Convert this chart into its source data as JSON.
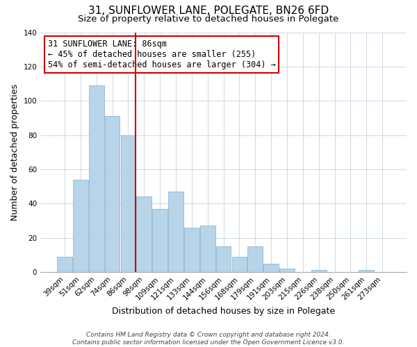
{
  "title": "31, SUNFLOWER LANE, POLEGATE, BN26 6FD",
  "subtitle": "Size of property relative to detached houses in Polegate",
  "xlabel": "Distribution of detached houses by size in Polegate",
  "ylabel": "Number of detached properties",
  "categories": [
    "39sqm",
    "51sqm",
    "62sqm",
    "74sqm",
    "86sqm",
    "98sqm",
    "109sqm",
    "121sqm",
    "133sqm",
    "144sqm",
    "156sqm",
    "168sqm",
    "179sqm",
    "191sqm",
    "203sqm",
    "215sqm",
    "226sqm",
    "238sqm",
    "250sqm",
    "261sqm",
    "273sqm"
  ],
  "values": [
    9,
    54,
    109,
    91,
    80,
    44,
    37,
    47,
    26,
    27,
    15,
    9,
    15,
    5,
    2,
    0,
    1,
    0,
    0,
    1,
    0
  ],
  "bar_color": "#b8d4e8",
  "bar_edge_color": "#90b8d8",
  "vline_color": "#cc0000",
  "vline_x_index": 4,
  "annotation_line1": "31 SUNFLOWER LANE: 86sqm",
  "annotation_line2": "← 45% of detached houses are smaller (255)",
  "annotation_line3": "54% of semi-detached houses are larger (304) →",
  "annotation_box_color": "#ffffff",
  "annotation_box_edge_color": "#cc0000",
  "ylim": [
    0,
    140
  ],
  "yticks": [
    0,
    20,
    40,
    60,
    80,
    100,
    120,
    140
  ],
  "footer_line1": "Contains HM Land Registry data © Crown copyright and database right 2024.",
  "footer_line2": "Contains public sector information licensed under the Open Government Licence v3.0.",
  "background_color": "#ffffff",
  "grid_color": "#d0dce8",
  "title_fontsize": 11,
  "subtitle_fontsize": 9.5,
  "axis_label_fontsize": 9,
  "tick_fontsize": 7.5,
  "annotation_fontsize": 8.5,
  "footer_fontsize": 6.5
}
